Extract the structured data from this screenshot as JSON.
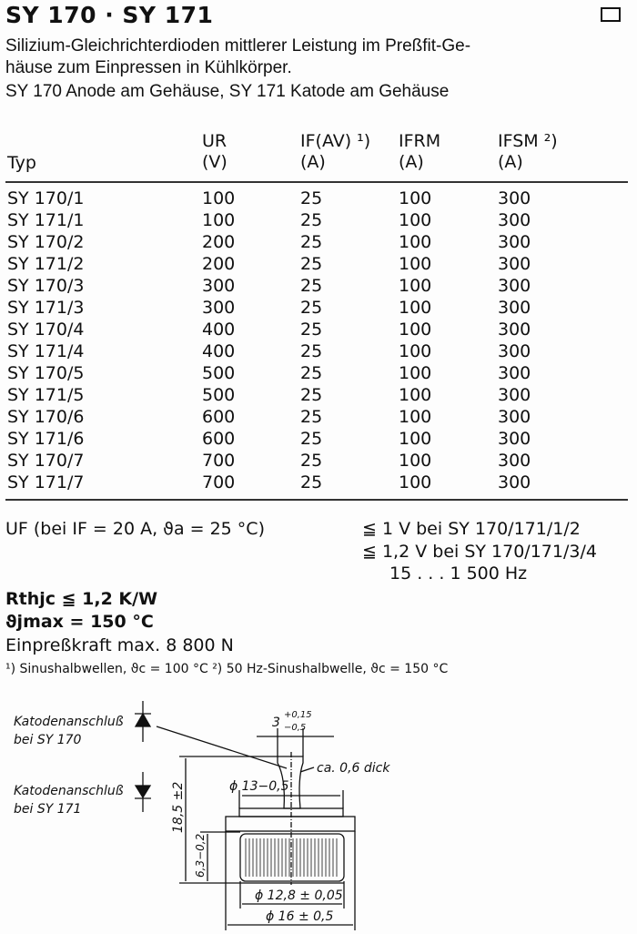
{
  "title": "SY 170 · SY 171",
  "description": [
    "Silizium-Gleichrichterdioden mittlerer Leistung im Preßfit-Ge-",
    "häuse zum Einpressen in Kühlkörper.",
    "SY 170 Anode am Gehäuse, SY 171 Katode am Gehäuse"
  ],
  "table": {
    "headers": [
      {
        "sym": "",
        "unit": "Typ"
      },
      {
        "sym": "UR",
        "unit": "(V)"
      },
      {
        "sym": "IF(AV) ¹)",
        "unit": "(A)"
      },
      {
        "sym": "IFRM",
        "unit": "(A)"
      },
      {
        "sym": "IFSM ²)",
        "unit": "(A)"
      }
    ],
    "rows": [
      [
        "SY 170/1",
        "100",
        "25",
        "100",
        "300"
      ],
      [
        "SY 171/1",
        "100",
        "25",
        "100",
        "300"
      ],
      [
        "SY 170/2",
        "200",
        "25",
        "100",
        "300"
      ],
      [
        "SY 171/2",
        "200",
        "25",
        "100",
        "300"
      ],
      [
        "SY 170/3",
        "300",
        "25",
        "100",
        "300"
      ],
      [
        "SY 171/3",
        "300",
        "25",
        "100",
        "300"
      ],
      [
        "SY 170/4",
        "400",
        "25",
        "100",
        "300"
      ],
      [
        "SY 171/4",
        "400",
        "25",
        "100",
        "300"
      ],
      [
        "SY 170/5",
        "500",
        "25",
        "100",
        "300"
      ],
      [
        "SY 171/5",
        "500",
        "25",
        "100",
        "300"
      ],
      [
        "SY 170/6",
        "600",
        "25",
        "100",
        "300"
      ],
      [
        "SY 171/6",
        "600",
        "25",
        "100",
        "300"
      ],
      [
        "SY 170/7",
        "700",
        "25",
        "100",
        "300"
      ],
      [
        "SY 171/7",
        "700",
        "25",
        "100",
        "300"
      ]
    ]
  },
  "specs": {
    "uf_label": "UF  (bei IF = 20 A, ϑa = 25 °C)",
    "uf_values": [
      "≦ 1 V bei SY 170/171/1/2",
      "≦ 1,2 V bei SY 170/171/3/4",
      "15 . . . 1 500 Hz"
    ],
    "rthjc": "Rthjc ≦ 1,2 K/W",
    "tjmax": "ϑjmax  = 150 °C",
    "force": "Einpreßkraft max. 8 800 N",
    "footnotes": "¹) Sinushalbwellen, ϑc = 100 °C   ²) 50 Hz-Sinushalbwelle, ϑc = 150 °C"
  },
  "drawing": {
    "label_170": [
      "Katodenanschluß",
      "bei SY 170"
    ],
    "label_171": [
      "Katodenanschluß",
      "bei SY 171"
    ],
    "dim_tab": "3",
    "dim_tab_tol": [
      "+0,15",
      "−0,5"
    ],
    "thickness": "ca. 0,6 dick",
    "dia13": "ϕ 13−0,5",
    "height": "18,5 ±2",
    "body_h": "6,3−0,2",
    "dia128": "ϕ 12,8 ± 0,05",
    "dia16": "ϕ 16 ± 0,5"
  }
}
